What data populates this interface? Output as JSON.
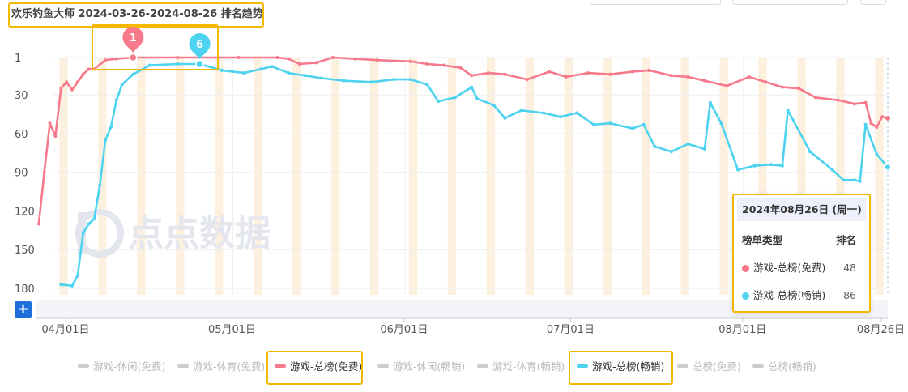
{
  "title": "欢乐钓鱼大师 2024-03-26-2024-08-26 排名趋势",
  "colors": {
    "free": "#f67a8b",
    "paid": "#4dd3f0",
    "weekend": "#fdf0df",
    "highlight": "#f5b800"
  },
  "watermark": "点点数据",
  "markers": [
    {
      "label": "1",
      "series": "free",
      "date": "2024-04-12",
      "rank": 1
    },
    {
      "label": "6",
      "series": "paid",
      "date": "2024-04-24",
      "rank": 6
    }
  ],
  "tooltip": {
    "date": "2024年08月26日 (周一)",
    "col_type": "榜单类型",
    "col_rank": "排名",
    "rows": [
      {
        "name": "游戏-总榜(免费)",
        "value": "48",
        "color": "#f67a8b"
      },
      {
        "name": "游戏-总榜(畅销)",
        "value": "86",
        "color": "#4dd3f0"
      }
    ]
  },
  "legend": [
    {
      "label": "游戏-休闲(免费)",
      "active": false
    },
    {
      "label": "游戏-体育(免费)",
      "active": false
    },
    {
      "label": "游戏-总榜(免费)",
      "active": true,
      "color": "#f67a8b"
    },
    {
      "label": "游戏-休闲(畅销)",
      "active": false
    },
    {
      "label": "游戏-体育(畅销)",
      "active": false
    },
    {
      "label": "游戏-总榜(畅销)",
      "active": true,
      "color": "#4dd3f0"
    },
    {
      "label": "总榜(免费)",
      "active": false
    },
    {
      "label": "总榜(畅销)",
      "active": false
    }
  ],
  "zoom_button": "+",
  "chart_data": {
    "type": "line",
    "x_start": "2024-03-26",
    "x_end": "2024-08-26",
    "x_ticks": [
      "04月01日",
      "05月01日",
      "06月01日",
      "07月01日",
      "08月01日",
      "08月26日"
    ],
    "y_ticks": [
      "1",
      "30",
      "60",
      "90",
      "120",
      "150",
      "180"
    ],
    "y_reversed": true,
    "ylim": [
      1,
      180
    ],
    "series": [
      {
        "name": "游戏-总榜(免费)",
        "color": "#f67a8b",
        "points": [
          [
            "2024-03-26",
            130
          ],
          [
            "2024-03-27",
            90
          ],
          [
            "2024-03-28",
            52
          ],
          [
            "2024-03-29",
            62
          ],
          [
            "2024-03-30",
            25
          ],
          [
            "2024-03-31",
            20
          ],
          [
            "2024-04-01",
            26
          ],
          [
            "2024-04-02",
            20
          ],
          [
            "2024-04-03",
            14
          ],
          [
            "2024-04-04",
            10
          ],
          [
            "2024-04-05",
            10
          ],
          [
            "2024-04-07",
            3
          ],
          [
            "2024-04-09",
            2
          ],
          [
            "2024-04-12",
            1
          ],
          [
            "2024-04-20",
            1
          ],
          [
            "2024-05-01",
            1
          ],
          [
            "2024-05-08",
            1
          ],
          [
            "2024-05-10",
            2
          ],
          [
            "2024-05-12",
            6
          ],
          [
            "2024-05-15",
            5
          ],
          [
            "2024-05-18",
            1
          ],
          [
            "2024-05-22",
            2
          ],
          [
            "2024-05-26",
            3
          ],
          [
            "2024-06-01",
            4
          ],
          [
            "2024-06-04",
            6
          ],
          [
            "2024-06-07",
            7
          ],
          [
            "2024-06-10",
            9
          ],
          [
            "2024-06-12",
            15
          ],
          [
            "2024-06-15",
            13
          ],
          [
            "2024-06-18",
            14
          ],
          [
            "2024-06-22",
            18
          ],
          [
            "2024-06-26",
            12
          ],
          [
            "2024-06-29",
            16
          ],
          [
            "2024-07-03",
            13
          ],
          [
            "2024-07-07",
            14
          ],
          [
            "2024-07-11",
            12
          ],
          [
            "2024-07-14",
            11
          ],
          [
            "2024-07-18",
            15
          ],
          [
            "2024-07-21",
            16
          ],
          [
            "2024-07-24",
            19
          ],
          [
            "2024-07-28",
            23
          ],
          [
            "2024-08-01",
            16
          ],
          [
            "2024-08-04",
            20
          ],
          [
            "2024-08-07",
            24
          ],
          [
            "2024-08-10",
            25
          ],
          [
            "2024-08-13",
            32
          ],
          [
            "2024-08-17",
            34
          ],
          [
            "2024-08-20",
            37
          ],
          [
            "2024-08-22",
            36
          ],
          [
            "2024-08-23",
            52
          ],
          [
            "2024-08-24",
            55
          ],
          [
            "2024-08-25",
            47
          ],
          [
            "2024-08-26",
            48
          ]
        ]
      },
      {
        "name": "游戏-总榜(畅销)",
        "color": "#4dd3f0",
        "points": [
          [
            "2024-03-30",
            177
          ],
          [
            "2024-04-01",
            178
          ],
          [
            "2024-04-02",
            170
          ],
          [
            "2024-04-03",
            137
          ],
          [
            "2024-04-04",
            130
          ],
          [
            "2024-04-05",
            126
          ],
          [
            "2024-04-06",
            100
          ],
          [
            "2024-04-07",
            65
          ],
          [
            "2024-04-08",
            55
          ],
          [
            "2024-04-09",
            34
          ],
          [
            "2024-04-10",
            22
          ],
          [
            "2024-04-12",
            14
          ],
          [
            "2024-04-15",
            7
          ],
          [
            "2024-04-20",
            6
          ],
          [
            "2024-04-24",
            6
          ],
          [
            "2024-04-28",
            11
          ],
          [
            "2024-05-02",
            13
          ],
          [
            "2024-05-05",
            10
          ],
          [
            "2024-05-07",
            8
          ],
          [
            "2024-05-10",
            13
          ],
          [
            "2024-05-13",
            15
          ],
          [
            "2024-05-16",
            17
          ],
          [
            "2024-05-20",
            19
          ],
          [
            "2024-05-25",
            20
          ],
          [
            "2024-05-29",
            18
          ],
          [
            "2024-06-01",
            18
          ],
          [
            "2024-06-04",
            22
          ],
          [
            "2024-06-06",
            35
          ],
          [
            "2024-06-09",
            32
          ],
          [
            "2024-06-12",
            24
          ],
          [
            "2024-06-13",
            33
          ],
          [
            "2024-06-16",
            38
          ],
          [
            "2024-06-18",
            48
          ],
          [
            "2024-06-21",
            42
          ],
          [
            "2024-06-25",
            44
          ],
          [
            "2024-06-28",
            47
          ],
          [
            "2024-07-01",
            44
          ],
          [
            "2024-07-04",
            53
          ],
          [
            "2024-07-07",
            52
          ],
          [
            "2024-07-11",
            56
          ],
          [
            "2024-07-13",
            53
          ],
          [
            "2024-07-15",
            70
          ],
          [
            "2024-07-18",
            74
          ],
          [
            "2024-07-21",
            68
          ],
          [
            "2024-07-24",
            72
          ],
          [
            "2024-07-25",
            36
          ],
          [
            "2024-07-27",
            52
          ],
          [
            "2024-07-30",
            88
          ],
          [
            "2024-08-02",
            85
          ],
          [
            "2024-08-05",
            84
          ],
          [
            "2024-08-07",
            85
          ],
          [
            "2024-08-08",
            42
          ],
          [
            "2024-08-09",
            50
          ],
          [
            "2024-08-12",
            74
          ],
          [
            "2024-08-16",
            88
          ],
          [
            "2024-08-18",
            96
          ],
          [
            "2024-08-20",
            96
          ],
          [
            "2024-08-21",
            97
          ],
          [
            "2024-08-22",
            53
          ],
          [
            "2024-08-24",
            76
          ],
          [
            "2024-08-26",
            86
          ]
        ]
      }
    ]
  }
}
